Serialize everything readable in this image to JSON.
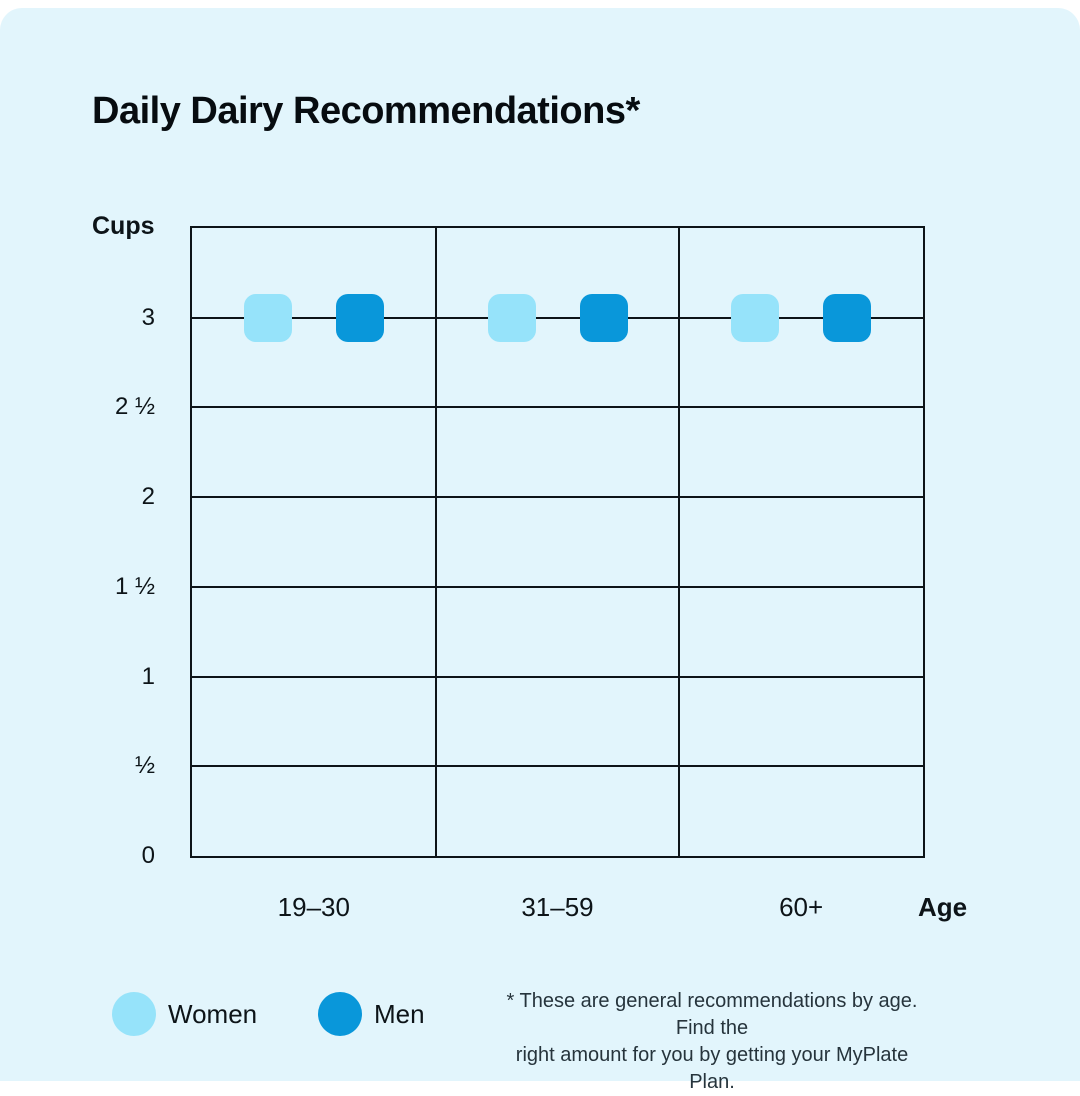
{
  "title": "Daily Dairy Recommendations*",
  "chart_data": {
    "type": "scatter",
    "title": "Daily Dairy Recommendations*",
    "categories": [
      "19–30",
      "31–59",
      "60+"
    ],
    "series": [
      {
        "name": "Women",
        "color": "#96E3FA",
        "values": [
          3,
          3,
          3
        ]
      },
      {
        "name": "Men",
        "color": "#0997DA",
        "values": [
          3,
          3,
          3
        ]
      }
    ],
    "xlabel": "Age",
    "ylabel": "Cups",
    "yticks": [
      {
        "label": "3",
        "value": 3
      },
      {
        "label": "2 ½",
        "value": 2.5
      },
      {
        "label": "2",
        "value": 2
      },
      {
        "label": "1 ½",
        "value": 1.5
      },
      {
        "label": "1",
        "value": 1
      },
      {
        "label": "½",
        "value": 0.5
      },
      {
        "label": "0",
        "value": 0
      }
    ],
    "ylim": [
      0,
      3.5
    ],
    "grid": true,
    "marker_shape": "rounded-square",
    "legend_position": "bottom-left"
  },
  "legend": {
    "items": [
      {
        "label": "Women",
        "color": "#96E3FA"
      },
      {
        "label": "Men",
        "color": "#0997DA"
      }
    ]
  },
  "footnote": {
    "lines": [
      "* These are general recommendations by age. Find the",
      "right amount for you by getting your MyPlate Plan."
    ]
  },
  "colors": {
    "page": "#FFFFFF",
    "background": "#E2F5FC",
    "ink": "#0D1418",
    "women": "#96E3FA",
    "men": "#0997DA"
  }
}
